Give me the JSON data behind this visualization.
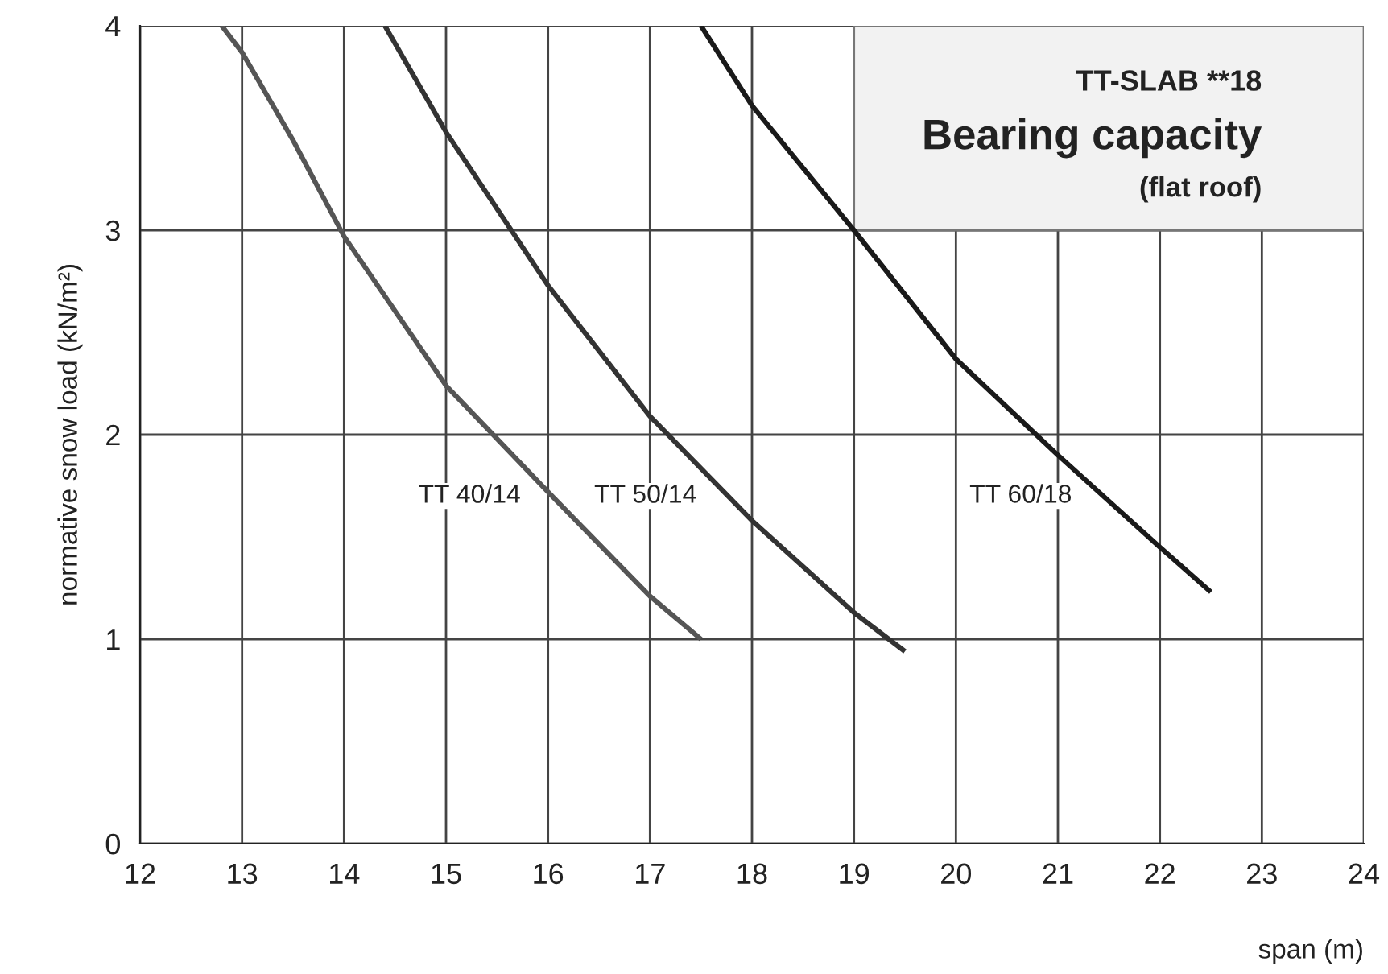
{
  "chart_data": {
    "type": "line",
    "title": "TT-SLAB **18",
    "subtitle": "Bearing capacity",
    "annotations": [
      "(flat roof)"
    ],
    "xlabel": "span (m)",
    "ylabel": "normative snow load (kN/m²)",
    "xlim": [
      12,
      24
    ],
    "ylim": [
      0,
      4
    ],
    "xticks": [
      12,
      13,
      14,
      15,
      16,
      17,
      18,
      19,
      20,
      21,
      22,
      23,
      24
    ],
    "yticks": [
      0,
      1,
      2,
      3,
      4
    ],
    "grid": true,
    "legend": false,
    "marker": "none",
    "line_style": "solid",
    "series": [
      {
        "name": "TT 40/14",
        "color": "#555555",
        "x": [
          12.8,
          13,
          13.5,
          14,
          15,
          16,
          17,
          17.5
        ],
        "values": [
          4.0,
          3.87,
          3.44,
          2.97,
          2.24,
          1.72,
          1.21,
          1.0
        ]
      },
      {
        "name": "TT 50/14",
        "color": "#333333",
        "x": [
          14.4,
          15,
          16,
          17,
          18,
          19,
          19.5
        ],
        "values": [
          4.0,
          3.48,
          2.73,
          2.09,
          1.58,
          1.13,
          0.94
        ]
      },
      {
        "name": "TT 60/18",
        "color": "#1a1a1a",
        "x": [
          17.5,
          18,
          19,
          20,
          21,
          22,
          22.5
        ],
        "values": [
          4.0,
          3.61,
          3.0,
          2.37,
          1.9,
          1.45,
          1.23
        ]
      }
    ]
  }
}
